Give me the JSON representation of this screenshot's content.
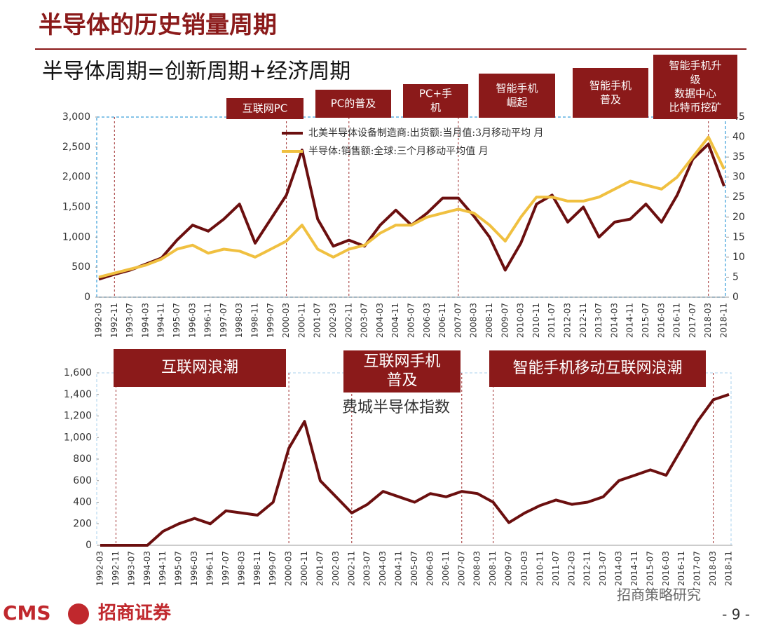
{
  "header": {
    "title": "半导体的历史销量周期",
    "subtitle": "半导体周期=创新周期+经济周期"
  },
  "chart_data": [
    {
      "type": "line",
      "x": [
        "1992-03",
        "1992-11",
        "1993-07",
        "1994-03",
        "1994-11",
        "1995-07",
        "1996-03",
        "1996-11",
        "1997-07",
        "1998-03",
        "1998-11",
        "1999-07",
        "2000-03",
        "2000-11",
        "2001-07",
        "2002-03",
        "2002-11",
        "2003-07",
        "2004-03",
        "2004-11",
        "2005-07",
        "2006-03",
        "2006-11",
        "2007-07",
        "2008-03",
        "2008-11",
        "2009-07",
        "2010-03",
        "2010-11",
        "2011-07",
        "2012-03",
        "2012-11",
        "2013-07",
        "2014-03",
        "2014-11",
        "2015-07",
        "2016-03",
        "2016-11",
        "2017-07",
        "2018-03",
        "2018-11"
      ],
      "series": [
        {
          "name": "北美半导体设备制造商:出货额:当月值:3月移动平均 月",
          "color": "#6b0f0f",
          "values": [
            300,
            380,
            450,
            550,
            650,
            950,
            1200,
            1100,
            1300,
            1550,
            900,
            1300,
            1700,
            2450,
            1300,
            850,
            950,
            850,
            1200,
            1450,
            1200,
            1400,
            1650,
            1650,
            1350,
            1000,
            450,
            900,
            1550,
            1700,
            1250,
            1500,
            1000,
            1250,
            1300,
            1550,
            1250,
            1700,
            2300,
            2550,
            1850
          ]
        },
        {
          "name": "半导体:销售额:全球:三个月移动平均值 月",
          "color": "#f0c040",
          "axis": "y2",
          "values": [
            5,
            6,
            7,
            8,
            9.5,
            12,
            13,
            11,
            12,
            11.5,
            10,
            12,
            14,
            18,
            12,
            10,
            12,
            13,
            16,
            18,
            18,
            20,
            21,
            22,
            21,
            18,
            14,
            20,
            25,
            25,
            24,
            24,
            25,
            27,
            29,
            28,
            27,
            30,
            35,
            40,
            32
          ]
        }
      ],
      "ylim": [
        0,
        3000
      ],
      "yticks": [
        0,
        500,
        {
          "value": 1000,
          "label": "1,000"
        },
        {
          "value": 1500,
          "label": "1,500"
        },
        {
          "value": 2000,
          "label": "2,000"
        },
        {
          "value": 2500,
          "label": "2,500"
        },
        {
          "value": 3000,
          "label": "3,000"
        }
      ],
      "y2lim": [
        0,
        45
      ],
      "y2ticks": [
        0,
        5,
        10,
        15,
        20,
        25,
        30,
        35,
        40,
        45
      ],
      "annotations": [
        [
          "互联网PC"
        ],
        [
          "PC的普及"
        ],
        [
          "PC+手",
          "机"
        ],
        [
          "智能手机",
          "崛起"
        ],
        [
          "智能手机",
          "普及"
        ],
        [
          "智能手机升",
          "级",
          "数据中心",
          "比特币挖矿"
        ]
      ]
    },
    {
      "type": "line",
      "x": [
        "1992-03",
        "1992-11",
        "1993-07",
        "1994-03",
        "1994-11",
        "1995-07",
        "1996-03",
        "1996-11",
        "1997-07",
        "1998-03",
        "1998-11",
        "1999-07",
        "2000-03",
        "2000-11",
        "2001-07",
        "2002-03",
        "2002-11",
        "2003-07",
        "2004-03",
        "2004-11",
        "2005-07",
        "2006-03",
        "2006-11",
        "2007-07",
        "2008-03",
        "2008-11",
        "2009-07",
        "2010-03",
        "2010-11",
        "2011-07",
        "2012-03",
        "2012-11",
        "2013-07",
        "2014-03",
        "2014-11",
        "2015-07",
        "2016-03",
        "2016-11",
        "2017-07",
        "2018-03",
        "2018-11"
      ],
      "series": [
        {
          "name": "费城半导体指数",
          "color": "#6b0f0f",
          "values": [
            0,
            0,
            0,
            0,
            130,
            200,
            250,
            200,
            320,
            300,
            280,
            400,
            900,
            1150,
            600,
            450,
            300,
            380,
            500,
            450,
            400,
            480,
            450,
            500,
            480,
            400,
            210,
            300,
            370,
            420,
            380,
            400,
            450,
            600,
            650,
            700,
            650,
            900,
            1150,
            1350,
            1400
          ]
        }
      ],
      "ylim": [
        0,
        1600
      ],
      "yticks": [
        0,
        200,
        400,
        600,
        800,
        {
          "value": 1000,
          "label": "1,000"
        },
        {
          "value": 1200,
          "label": "1,200"
        },
        {
          "value": 1400,
          "label": "1,400"
        },
        {
          "value": 1600,
          "label": "1,600"
        }
      ],
      "annotations": [
        [
          "互联网浪潮"
        ],
        [
          "互联网手机",
          "普及"
        ],
        [
          "智能手机移动互联网浪潮"
        ]
      ]
    }
  ],
  "footer": {
    "brand": "CMS",
    "company": "招商证券",
    "watermark": "招商策略研究",
    "page": "- 9 -"
  }
}
